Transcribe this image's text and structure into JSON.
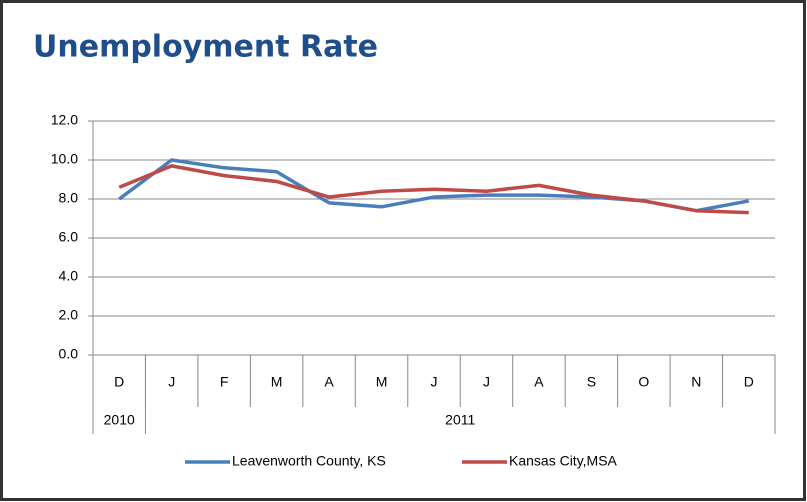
{
  "chart_data": {
    "type": "line",
    "title": "Unemployment Rate",
    "categories": [
      "D",
      "J",
      "F",
      "M",
      "A",
      "M",
      "J",
      "J",
      "A",
      "S",
      "O",
      "N",
      "D"
    ],
    "groups": [
      {
        "label": "2010",
        "count": 1
      },
      {
        "label": "2011",
        "count": 12
      }
    ],
    "series": [
      {
        "name": "Leavenworth County, KS",
        "color": "#4a7ebb",
        "values": [
          8.0,
          10.0,
          9.6,
          9.4,
          7.8,
          7.6,
          8.1,
          8.2,
          8.2,
          8.1,
          7.9,
          7.4,
          7.9
        ]
      },
      {
        "name": "Kansas City,MSA",
        "color": "#be4b48",
        "values": [
          8.6,
          9.7,
          9.2,
          8.9,
          8.1,
          8.4,
          8.5,
          8.4,
          8.7,
          8.2,
          7.9,
          7.4,
          7.3
        ]
      }
    ],
    "ylim": [
      0,
      12
    ],
    "yticks": [
      {
        "value": 0,
        "label": "0.0"
      },
      {
        "value": 2,
        "label": "2.0"
      },
      {
        "value": 4,
        "label": "4.0"
      },
      {
        "value": 6,
        "label": "6.0"
      },
      {
        "value": 8,
        "label": "8.0"
      },
      {
        "value": 10,
        "label": "10.0"
      },
      {
        "value": 12,
        "label": "12.0"
      }
    ],
    "grid": true,
    "legend": "bottom"
  }
}
